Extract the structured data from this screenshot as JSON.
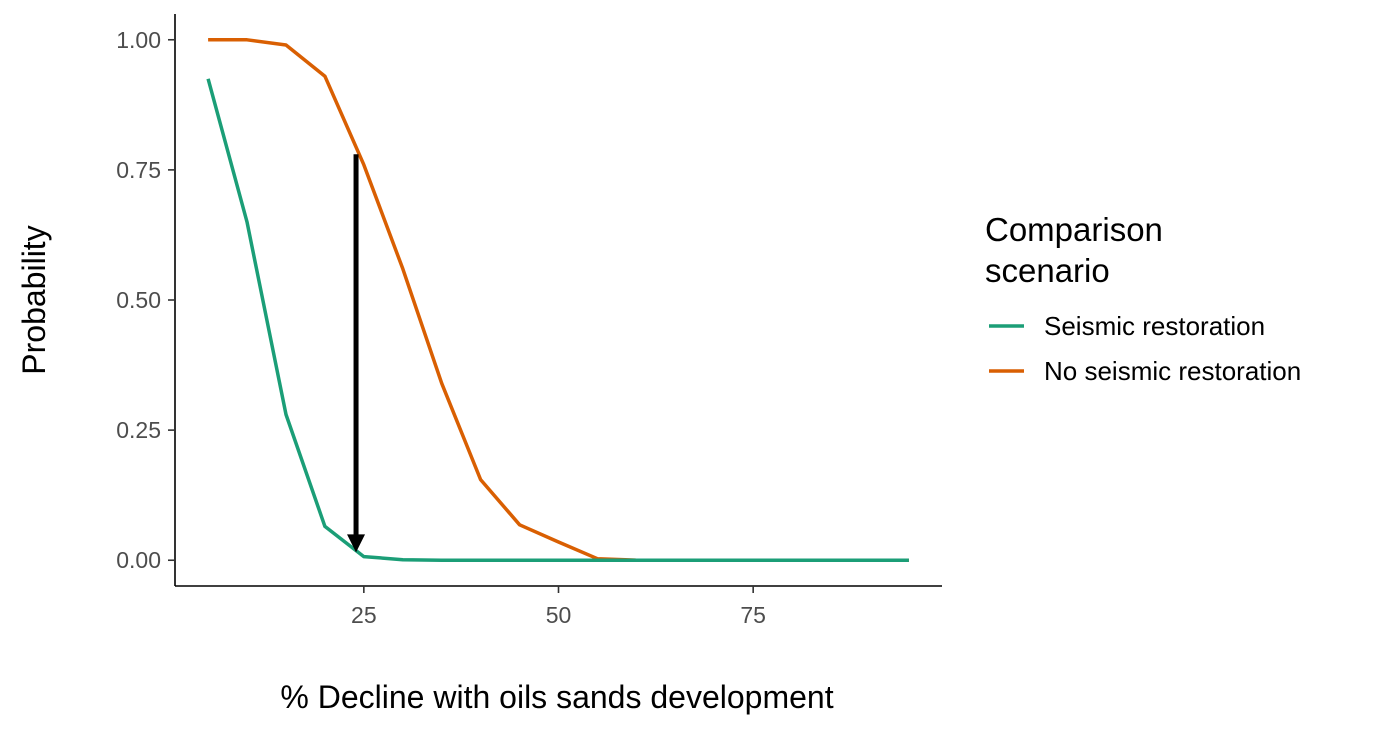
{
  "chart_data": {
    "type": "line",
    "xlabel": "% Decline with oils sands development",
    "ylabel": "Probability",
    "xlim": [
      0,
      100
    ],
    "ylim": [
      0,
      1
    ],
    "x_ticks": [
      25,
      50,
      75
    ],
    "x_tick_labels": [
      "25",
      "50",
      "75"
    ],
    "y_ticks": [
      0,
      0.25,
      0.5,
      0.75,
      1
    ],
    "y_tick_labels": [
      "0.00",
      "0.25",
      "0.50",
      "0.75",
      "1.00"
    ],
    "grid": false,
    "legend": {
      "title_lines": [
        "Comparison",
        "scenario"
      ],
      "placement": "right"
    },
    "series": [
      {
        "name": "Seismic restoration",
        "color": "#1b9e77",
        "x": [
          5,
          10,
          15,
          20,
          25,
          30,
          35,
          40,
          45,
          50,
          55,
          60,
          65,
          70,
          75,
          80,
          85,
          90,
          95
        ],
        "y": [
          0.925,
          0.65,
          0.28,
          0.065,
          0.007,
          0.001,
          0,
          0,
          0,
          0,
          0,
          0,
          0,
          0,
          0,
          0,
          0,
          0,
          0
        ]
      },
      {
        "name": "No seismic restoration",
        "color": "#d95f02",
        "x": [
          5,
          10,
          15,
          20,
          25,
          30,
          35,
          40,
          45,
          50,
          55,
          60,
          65,
          70,
          75,
          80,
          85,
          90,
          95
        ],
        "y": [
          1.0,
          1.0,
          0.99,
          0.93,
          0.76,
          0.56,
          0.34,
          0.155,
          0.068,
          0.035,
          0.003,
          0,
          0,
          0,
          0,
          0,
          0,
          0,
          0
        ]
      }
    ],
    "annotations": [
      {
        "type": "arrow",
        "x": 24,
        "y_start": 0.78,
        "y_end": 0.015,
        "color": "#000000"
      }
    ]
  }
}
